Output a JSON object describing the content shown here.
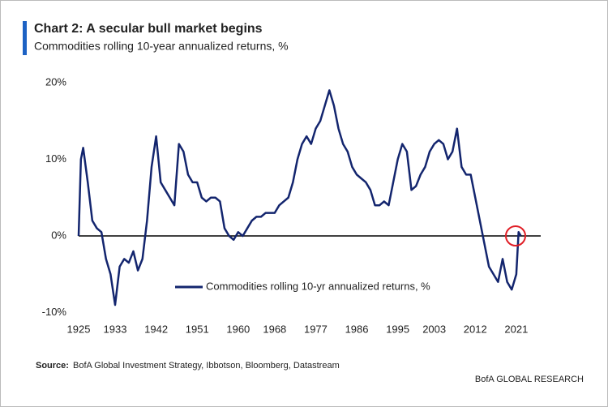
{
  "chart_data": {
    "type": "line",
    "title": "Chart 2: A secular bull market begins",
    "subtitle": "Commodities rolling 10-year annualized returns, %",
    "x": [
      1925,
      1925.5,
      1926,
      1927,
      1928,
      1929,
      1930,
      1931,
      1932,
      1933,
      1934,
      1935,
      1936,
      1937,
      1938,
      1939,
      1940,
      1941,
      1942,
      1943,
      1944,
      1945,
      1946,
      1947,
      1948,
      1949,
      1950,
      1951,
      1952,
      1953,
      1954,
      1955,
      1956,
      1957,
      1958,
      1959,
      1960,
      1961,
      1962,
      1963,
      1964,
      1965,
      1966,
      1967,
      1968,
      1969,
      1970,
      1971,
      1972,
      1973,
      1974,
      1975,
      1976,
      1977,
      1978,
      1979,
      1980,
      1981,
      1982,
      1983,
      1984,
      1985,
      1986,
      1987,
      1988,
      1989,
      1990,
      1991,
      1992,
      1993,
      1994,
      1995,
      1996,
      1997,
      1998,
      1999,
      2000,
      2001,
      2002,
      2003,
      2004,
      2005,
      2006,
      2007,
      2008,
      2009,
      2010,
      2011,
      2012,
      2013,
      2014,
      2015,
      2016,
      2017,
      2018,
      2019,
      2020,
      2021,
      2021.5,
      2022
    ],
    "series": [
      {
        "name": "Commodities rolling 10-yr annualized returns, %",
        "color": "#13256e",
        "values": [
          0,
          10,
          11.5,
          7,
          2,
          1,
          0.5,
          -3,
          -5,
          -9,
          -4,
          -3,
          -3.5,
          -2,
          -4.5,
          -3,
          2,
          9,
          13,
          7,
          6,
          5,
          4,
          12,
          11,
          8,
          7,
          7,
          5,
          4.5,
          5,
          5,
          4.5,
          1,
          0,
          -0.5,
          0.5,
          0,
          1,
          2,
          2.5,
          2.5,
          3,
          3,
          3,
          4,
          4.5,
          5,
          7,
          10,
          12,
          13,
          12,
          14,
          15,
          17,
          19,
          17,
          14,
          12,
          11,
          9,
          8,
          7.5,
          7,
          6,
          4,
          4,
          4.5,
          4,
          7,
          10,
          12,
          11,
          6,
          6.5,
          8,
          9,
          11,
          12,
          12.5,
          12,
          10,
          11,
          14,
          9,
          8,
          8,
          5,
          2,
          -1,
          -4,
          -5,
          -6,
          -3,
          -6,
          -7,
          -5,
          0.5,
          0
        ]
      }
    ],
    "xlim": [
      1925,
      2026
    ],
    "ylim": [
      -11,
      21
    ],
    "xticks": [
      1925,
      1933,
      1942,
      1951,
      1960,
      1968,
      1977,
      1986,
      1995,
      2003,
      2012,
      2021
    ],
    "yticks": [
      {
        "value": -10,
        "label": "-10%"
      },
      {
        "value": 0,
        "label": "0%"
      },
      {
        "value": 10,
        "label": "10%"
      },
      {
        "value": 20,
        "label": "20%"
      }
    ],
    "source_label": "Source:",
    "source": "BofA Global Investment Strategy, Ibbotson, Bloomberg, Datastream",
    "footer": "BofA GLOBAL RESEARCH"
  }
}
